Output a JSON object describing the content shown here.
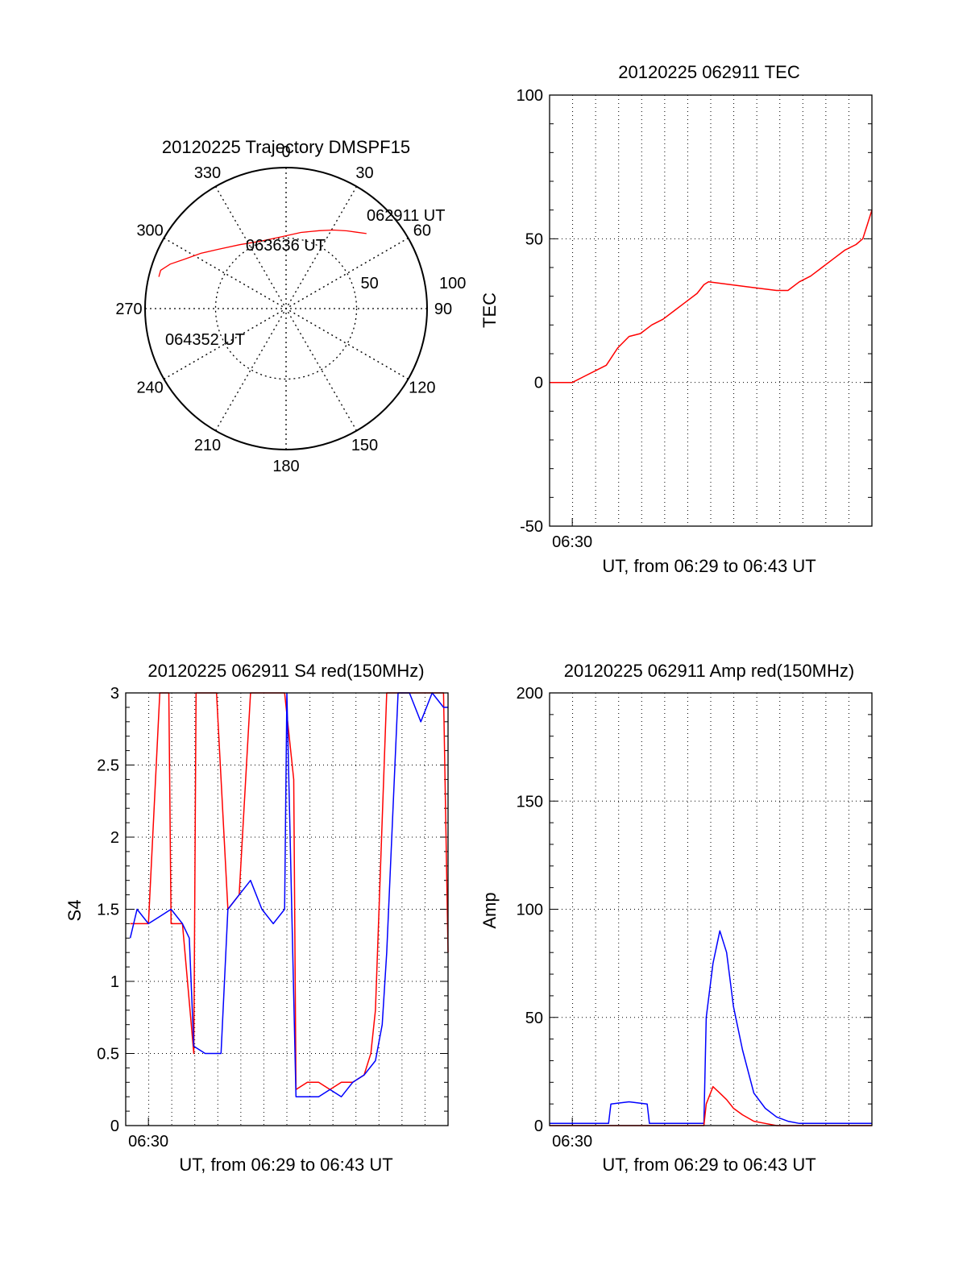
{
  "colors": {
    "red": "#ff0000",
    "blue": "#0000ff",
    "axis": "#000000",
    "grid": "#000000"
  },
  "chart_data": [
    {
      "type": "polar",
      "title": "20120225 Trajectory DMSPF15",
      "angle_labels": [
        "0",
        "30",
        "60",
        "90",
        "120",
        "150",
        "180",
        "210",
        "240",
        "270",
        "300",
        "330"
      ],
      "radial_labels": [
        "50",
        "100"
      ],
      "grid": true,
      "series": [
        {
          "color": "#ff0000",
          "points": [
            {
              "az": 47,
              "r": 78
            },
            {
              "az": 43,
              "r": 74
            },
            {
              "az": 38,
              "r": 70
            },
            {
              "az": 31,
              "r": 65
            },
            {
              "az": 23,
              "r": 60
            },
            {
              "az": 11,
              "r": 55
            },
            {
              "az": -4,
              "r": 51
            },
            {
              "az": -20,
              "r": 51
            },
            {
              "az": -36,
              "r": 56
            },
            {
              "az": -49,
              "r": 64
            },
            {
              "az": -57,
              "r": 72
            },
            {
              "az": -64,
              "r": 80
            },
            {
              "az": -69,
              "r": 88
            },
            {
              "az": -73,
              "r": 93
            },
            {
              "az": -76,
              "r": 93
            }
          ]
        }
      ],
      "annotations": [
        "062911 UT",
        "063636 UT",
        "064352 UT"
      ]
    },
    {
      "type": "line",
      "title": "20120225 062911 TEC",
      "ylabel": "TEC",
      "xlabel": "UT, from 06:29 to 06:43 UT",
      "x_unit": "minutes after 06:29 UT",
      "xlim": [
        0,
        14.2
      ],
      "ylim": [
        -50,
        100
      ],
      "yticks": [
        -50,
        0,
        50,
        100
      ],
      "xticks": [
        {
          "value": 1,
          "label": "06:30"
        }
      ],
      "grid": true,
      "series": [
        {
          "color": "#ff0000",
          "x": [
            0,
            0.5,
            1.0,
            1.5,
            2.0,
            2.5,
            3.0,
            3.5,
            4.0,
            4.5,
            5.0,
            5.5,
            6.0,
            6.5,
            6.8,
            7.0,
            8.0,
            9.0,
            10.0,
            10.5,
            11.0,
            11.5,
            12.0,
            12.5,
            13.0,
            13.5,
            13.8,
            14.0,
            14.2
          ],
          "y": [
            0,
            0,
            0,
            2,
            4,
            6,
            12,
            16,
            17,
            20,
            22,
            25,
            28,
            31,
            34,
            35,
            34,
            33,
            32,
            32,
            35,
            37,
            40,
            43,
            46,
            48,
            50,
            55,
            60
          ]
        }
      ]
    },
    {
      "type": "line",
      "title": "20120225 062911 S4 red(150MHz)",
      "ylabel": "S4",
      "xlabel": "UT, from 06:29 to 06:43 UT",
      "x_unit": "minutes after 06:29 UT",
      "xlim": [
        0,
        14.2
      ],
      "ylim": [
        0,
        3
      ],
      "yticks": [
        0,
        0.5,
        1,
        1.5,
        2,
        2.5,
        3
      ],
      "ytick_labels": [
        "0",
        "0.5",
        "1",
        "1.5",
        "2",
        "2.5",
        "3"
      ],
      "xticks": [
        {
          "value": 1,
          "label": "06:30"
        }
      ],
      "grid": true,
      "series": [
        {
          "color": "#ff0000",
          "x": [
            0.2,
            0.5,
            1.0,
            1.5,
            1.6,
            1.9,
            2.0,
            2.5,
            3.0,
            3.1,
            3.5,
            4.0,
            4.5,
            5.0,
            5.5,
            6.0,
            6.5,
            7.0,
            7.4,
            7.5,
            8.0,
            8.5,
            9.0,
            9.5,
            10.0,
            10.5,
            10.8,
            11.0,
            11.5,
            12.0,
            12.5,
            13.0,
            13.5,
            14.0,
            14.2
          ],
          "y": [
            1.4,
            1.4,
            1.4,
            3.0,
            3.0,
            3.0,
            1.4,
            1.4,
            0.5,
            3.0,
            3.0,
            3.0,
            1.5,
            1.6,
            3.0,
            3.0,
            3.0,
            3.0,
            2.4,
            0.25,
            0.3,
            0.3,
            0.25,
            0.3,
            0.3,
            0.35,
            0.5,
            0.8,
            3.0,
            3.0,
            3.0,
            3.0,
            3.0,
            3.0,
            1.2
          ]
        },
        {
          "color": "#0000ff",
          "x": [
            0.2,
            0.5,
            1.0,
            1.5,
            2.0,
            2.5,
            2.8,
            3.0,
            3.5,
            4.0,
            4.2,
            4.5,
            5.0,
            5.5,
            6.0,
            6.5,
            7.0,
            7.1,
            7.5,
            8.0,
            8.5,
            9.0,
            9.5,
            10.0,
            10.5,
            11.0,
            11.3,
            11.5,
            12.0,
            12.5,
            13.0,
            13.5,
            14.0,
            14.2
          ],
          "y": [
            1.3,
            1.5,
            1.4,
            1.45,
            1.5,
            1.4,
            1.3,
            0.55,
            0.5,
            0.5,
            0.5,
            1.5,
            1.6,
            1.7,
            1.5,
            1.4,
            1.5,
            3.0,
            0.2,
            0.2,
            0.2,
            0.25,
            0.2,
            0.3,
            0.35,
            0.45,
            0.7,
            1.2,
            3.0,
            3.0,
            2.8,
            3.0,
            2.9,
            2.9
          ]
        }
      ]
    },
    {
      "type": "line",
      "title": "20120225 062911 Amp red(150MHz)",
      "ylabel": "Amp",
      "xlabel": "UT, from 06:29 to 06:43 UT",
      "x_unit": "minutes after 06:29 UT",
      "xlim": [
        0,
        14.2
      ],
      "ylim": [
        0,
        200
      ],
      "yticks": [
        0,
        50,
        100,
        150,
        200
      ],
      "xticks": [
        {
          "value": 1,
          "label": "06:30"
        }
      ],
      "grid": true,
      "series": [
        {
          "color": "#0000ff",
          "x": [
            0,
            1,
            2,
            2.6,
            2.7,
            3.5,
            4.3,
            4.4,
            5,
            6,
            6.8,
            6.9,
            7.2,
            7.5,
            7.8,
            8.1,
            8.5,
            9,
            9.5,
            10,
            10.5,
            11,
            12,
            13,
            14,
            14.2
          ],
          "y": [
            1,
            1,
            1,
            1,
            10,
            11,
            10,
            1,
            1,
            1,
            1,
            50,
            75,
            90,
            80,
            55,
            35,
            15,
            8,
            4,
            2,
            1,
            1,
            1,
            1,
            1
          ]
        },
        {
          "color": "#ff0000",
          "x": [
            0,
            1,
            2,
            3,
            4,
            5,
            6,
            6.8,
            6.9,
            7.2,
            7.5,
            7.8,
            8.1,
            8.5,
            9,
            9.5,
            10,
            11,
            12,
            13,
            14,
            14.2
          ],
          "y": [
            0,
            0,
            0,
            0,
            0,
            0,
            0,
            0,
            10,
            18,
            15,
            12,
            8,
            5,
            2,
            1,
            0,
            0,
            0,
            0,
            0,
            0
          ]
        }
      ]
    }
  ]
}
